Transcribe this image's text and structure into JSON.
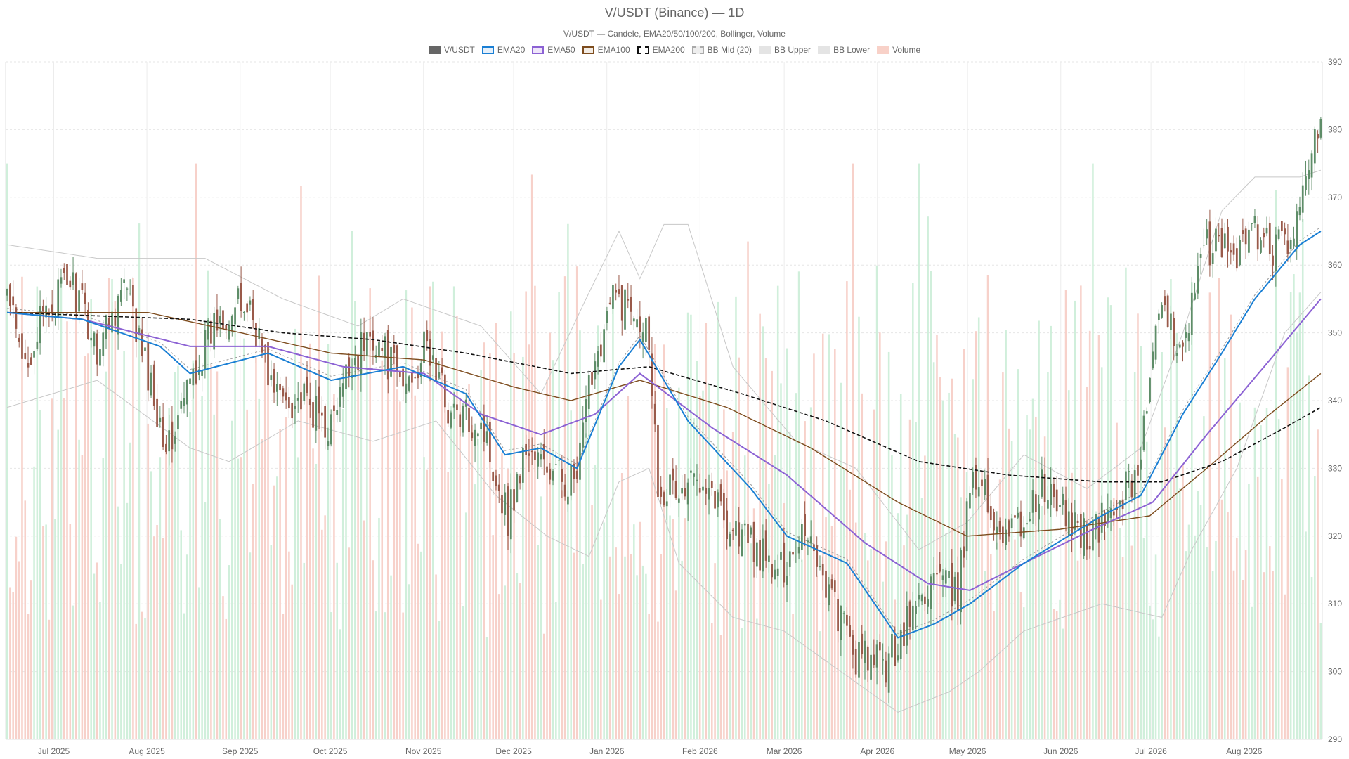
{
  "chart_data": {
    "type": "candlestick",
    "title": "V/USDT (Binance) — 1D",
    "subtitle": "V/USDT — Candele, EMA20/50/100/200, Bollinger, Volume",
    "legend": [
      {
        "name": "V/USDT",
        "fill": "#666666",
        "stroke": "#666666",
        "dash": false
      },
      {
        "name": "EMA20",
        "fill": "#e6f0fa",
        "stroke": "#1a7fd4",
        "dash": false
      },
      {
        "name": "EMA50",
        "fill": "#efe6fa",
        "stroke": "#8c62d4",
        "dash": false
      },
      {
        "name": "EMA100",
        "fill": "#f3ece4",
        "stroke": "#7d4c1e",
        "dash": false
      },
      {
        "name": "EMA200",
        "fill": "#ffffff",
        "stroke": "#111111",
        "dash": true
      },
      {
        "name": "BB Mid (20)",
        "fill": "#eeeeee",
        "stroke": "#aaaaaa",
        "dash": true
      },
      {
        "name": "BB Upper",
        "fill": "#e4e4e4",
        "stroke": "#e4e4e4",
        "dash": false
      },
      {
        "name": "BB Lower",
        "fill": "#e4e4e4",
        "stroke": "#e4e4e4",
        "dash": false
      },
      {
        "name": "Volume",
        "fill": "#f8d1c8",
        "stroke": "#f8d1c8",
        "dash": false
      }
    ],
    "y_axis": {
      "min": 290,
      "max": 390,
      "ticks": [
        290,
        300,
        310,
        320,
        330,
        340,
        350,
        360,
        370,
        380,
        390
      ],
      "position": "right"
    },
    "x_axis": {
      "start_date": "2025-06-15",
      "end_date": "2026-08-27",
      "month_ticks": [
        {
          "label": "Jul 2025",
          "date": "2025-07-01"
        },
        {
          "label": "Aug 2025",
          "date": "2025-08-01"
        },
        {
          "label": "Sep 2025",
          "date": "2025-09-01"
        },
        {
          "label": "Oct 2025",
          "date": "2025-10-01"
        },
        {
          "label": "Nov 2025",
          "date": "2025-11-01"
        },
        {
          "label": "Dec 2025",
          "date": "2025-12-01"
        },
        {
          "label": "Jan 2026",
          "date": "2026-01-01"
        },
        {
          "label": "Feb 2026",
          "date": "2026-02-01"
        },
        {
          "label": "Mar 2026",
          "date": "2026-03-01"
        },
        {
          "label": "Apr 2026",
          "date": "2026-04-01"
        },
        {
          "label": "May 2026",
          "date": "2026-05-01"
        },
        {
          "label": "Jun 2026",
          "date": "2026-06-01"
        },
        {
          "label": "Jul 2026",
          "date": "2026-07-01"
        },
        {
          "label": "Aug 2026",
          "date": "2026-08-01"
        }
      ]
    },
    "close_anchors": [
      [
        "2025-06-15",
        356
      ],
      [
        "2025-06-20",
        345
      ],
      [
        "2025-06-28",
        353
      ],
      [
        "2025-07-06",
        358
      ],
      [
        "2025-07-15",
        348
      ],
      [
        "2025-07-24",
        357
      ],
      [
        "2025-08-02",
        342
      ],
      [
        "2025-08-08",
        333
      ],
      [
        "2025-08-16",
        344
      ],
      [
        "2025-08-25",
        353
      ],
      [
        "2025-09-04",
        354
      ],
      [
        "2025-09-12",
        341
      ],
      [
        "2025-09-21",
        340
      ],
      [
        "2025-10-01",
        336
      ],
      [
        "2025-10-08",
        346
      ],
      [
        "2025-10-15",
        350
      ],
      [
        "2025-10-25",
        342
      ],
      [
        "2025-11-02",
        348
      ],
      [
        "2025-11-10",
        338
      ],
      [
        "2025-11-20",
        337
      ],
      [
        "2025-11-29",
        323
      ],
      [
        "2025-12-05",
        333
      ],
      [
        "2025-12-14",
        329
      ],
      [
        "2025-12-22",
        328
      ],
      [
        "2025-12-27",
        345
      ],
      [
        "2026-01-03",
        355
      ],
      [
        "2026-01-11",
        354
      ],
      [
        "2026-01-15",
        350
      ],
      [
        "2026-01-18",
        328
      ],
      [
        "2026-01-26",
        326
      ],
      [
        "2026-02-02",
        330
      ],
      [
        "2026-02-10",
        322
      ],
      [
        "2026-02-18",
        319
      ],
      [
        "2026-02-27",
        314
      ],
      [
        "2026-03-08",
        322
      ],
      [
        "2026-03-16",
        312
      ],
      [
        "2026-03-25",
        302
      ],
      [
        "2026-04-04",
        301
      ],
      [
        "2026-04-12",
        308
      ],
      [
        "2026-04-20",
        314
      ],
      [
        "2026-04-28",
        311
      ],
      [
        "2026-05-03",
        331
      ],
      [
        "2026-05-10",
        322
      ],
      [
        "2026-05-18",
        321
      ],
      [
        "2026-05-26",
        327
      ],
      [
        "2026-06-03",
        323
      ],
      [
        "2026-06-11",
        320
      ],
      [
        "2026-06-19",
        324
      ],
      [
        "2026-06-27",
        330
      ],
      [
        "2026-07-04",
        352
      ],
      [
        "2026-07-12",
        349
      ],
      [
        "2026-07-20",
        363
      ],
      [
        "2026-07-29",
        362
      ],
      [
        "2026-08-05",
        365
      ],
      [
        "2026-08-12",
        362
      ],
      [
        "2026-08-20",
        366
      ],
      [
        "2026-08-25",
        381
      ]
    ],
    "ema20_anchors": [
      [
        "2025-06-15",
        353
      ],
      [
        "2025-07-10",
        352
      ],
      [
        "2025-08-05",
        348
      ],
      [
        "2025-08-15",
        344
      ],
      [
        "2025-09-10",
        347
      ],
      [
        "2025-10-01",
        343
      ],
      [
        "2025-10-25",
        345
      ],
      [
        "2025-11-15",
        341
      ],
      [
        "2025-11-28",
        332
      ],
      [
        "2025-12-10",
        333
      ],
      [
        "2025-12-22",
        330
      ],
      [
        "2026-01-05",
        345
      ],
      [
        "2026-01-12",
        349
      ],
      [
        "2026-01-28",
        337
      ],
      [
        "2026-02-18",
        327
      ],
      [
        "2026-03-02",
        320
      ],
      [
        "2026-03-22",
        316
      ],
      [
        "2026-04-08",
        305
      ],
      [
        "2026-04-20",
        307
      ],
      [
        "2026-05-02",
        310
      ],
      [
        "2026-05-20",
        316
      ],
      [
        "2026-06-15",
        323
      ],
      [
        "2026-06-28",
        326
      ],
      [
        "2026-07-12",
        338
      ],
      [
        "2026-07-25",
        347
      ],
      [
        "2026-08-05",
        355
      ],
      [
        "2026-08-20",
        363
      ],
      [
        "2026-08-27",
        365
      ]
    ],
    "ema50_anchors": [
      [
        "2025-06-15",
        353
      ],
      [
        "2025-07-10",
        352
      ],
      [
        "2025-08-15",
        348
      ],
      [
        "2025-09-10",
        348
      ],
      [
        "2025-10-05",
        345
      ],
      [
        "2025-11-01",
        344
      ],
      [
        "2025-11-20",
        338
      ],
      [
        "2025-12-10",
        335
      ],
      [
        "2025-12-28",
        338
      ],
      [
        "2026-01-12",
        344
      ],
      [
        "2026-02-05",
        336
      ],
      [
        "2026-03-02",
        329
      ],
      [
        "2026-03-28",
        319
      ],
      [
        "2026-04-18",
        313
      ],
      [
        "2026-05-02",
        312
      ],
      [
        "2026-05-20",
        316
      ],
      [
        "2026-06-12",
        321
      ],
      [
        "2026-07-02",
        325
      ],
      [
        "2026-07-20",
        335
      ],
      [
        "2026-08-10",
        346
      ],
      [
        "2026-08-27",
        355
      ]
    ],
    "ema100_anchors": [
      [
        "2025-06-15",
        353
      ],
      [
        "2025-08-01",
        353
      ],
      [
        "2025-09-01",
        350
      ],
      [
        "2025-10-01",
        347
      ],
      [
        "2025-11-01",
        346
      ],
      [
        "2025-12-01",
        342
      ],
      [
        "2025-12-20",
        340
      ],
      [
        "2026-01-12",
        343
      ],
      [
        "2026-02-10",
        339
      ],
      [
        "2026-03-10",
        333
      ],
      [
        "2026-04-08",
        325
      ],
      [
        "2026-05-01",
        320
      ],
      [
        "2026-06-01",
        321
      ],
      [
        "2026-07-01",
        323
      ],
      [
        "2026-07-20",
        330
      ],
      [
        "2026-08-10",
        338
      ],
      [
        "2026-08-27",
        344
      ]
    ],
    "ema200_anchors": [
      [
        "2025-06-15",
        353
      ],
      [
        "2025-08-15",
        352
      ],
      [
        "2025-09-15",
        350
      ],
      [
        "2025-10-15",
        349
      ],
      [
        "2025-11-15",
        347
      ],
      [
        "2025-12-20",
        344
      ],
      [
        "2026-01-15",
        345
      ],
      [
        "2026-02-15",
        341
      ],
      [
        "2026-03-15",
        337
      ],
      [
        "2026-04-15",
        331
      ],
      [
        "2026-05-15",
        329
      ],
      [
        "2026-06-15",
        328
      ],
      [
        "2026-07-05",
        328
      ],
      [
        "2026-07-25",
        331
      ],
      [
        "2026-08-15",
        336
      ],
      [
        "2026-08-27",
        339
      ]
    ],
    "bb_upper_anchors": [
      [
        "2025-06-15",
        363
      ],
      [
        "2025-07-15",
        361
      ],
      [
        "2025-08-20",
        361
      ],
      [
        "2025-09-15",
        355
      ],
      [
        "2025-10-10",
        351
      ],
      [
        "2025-10-25",
        355
      ],
      [
        "2025-11-20",
        351
      ],
      [
        "2025-12-10",
        341
      ],
      [
        "2025-12-25",
        355
      ],
      [
        "2026-01-05",
        365
      ],
      [
        "2026-01-12",
        358
      ],
      [
        "2026-01-20",
        366
      ],
      [
        "2026-01-28",
        366
      ],
      [
        "2026-02-12",
        345
      ],
      [
        "2026-03-05",
        334
      ],
      [
        "2026-03-25",
        330
      ],
      [
        "2026-04-15",
        318
      ],
      [
        "2026-05-01",
        322
      ],
      [
        "2026-05-20",
        332
      ],
      [
        "2026-06-10",
        327
      ],
      [
        "2026-06-28",
        333
      ],
      [
        "2026-07-12",
        350
      ],
      [
        "2026-07-25",
        368
      ],
      [
        "2026-08-05",
        373
      ],
      [
        "2026-08-20",
        373
      ],
      [
        "2026-08-27",
        374
      ]
    ],
    "bb_lower_anchors": [
      [
        "2025-06-15",
        339
      ],
      [
        "2025-07-15",
        343
      ],
      [
        "2025-08-15",
        333
      ],
      [
        "2025-08-28",
        331
      ],
      [
        "2025-09-20",
        337
      ],
      [
        "2025-10-15",
        334
      ],
      [
        "2025-11-05",
        337
      ],
      [
        "2025-11-25",
        326
      ],
      [
        "2025-12-12",
        320
      ],
      [
        "2025-12-26",
        317
      ],
      [
        "2026-01-05",
        328
      ],
      [
        "2026-01-15",
        330
      ],
      [
        "2026-01-25",
        316
      ],
      [
        "2026-02-12",
        308
      ],
      [
        "2026-03-01",
        306
      ],
      [
        "2026-03-20",
        300
      ],
      [
        "2026-04-08",
        294
      ],
      [
        "2026-04-25",
        297
      ],
      [
        "2026-05-05",
        300
      ],
      [
        "2026-05-20",
        306
      ],
      [
        "2026-06-15",
        310
      ],
      [
        "2026-07-05",
        308
      ],
      [
        "2026-07-15",
        318
      ],
      [
        "2026-07-30",
        330
      ],
      [
        "2026-08-15",
        350
      ],
      [
        "2026-08-27",
        356
      ]
    ],
    "bb_mid_note": "BB Mid (20) approximately equals EMA20 (dotted line)",
    "volume": {
      "scale_max": 100,
      "note": "Volume bars drawn in lower area, up-days green, down-days red; relative heights 15–85% of panel"
    },
    "colors": {
      "up": "#5e8d68",
      "down": "#9a5a4a",
      "vol_up": "#cdeed9",
      "vol_down": "#f7cfc7"
    }
  }
}
